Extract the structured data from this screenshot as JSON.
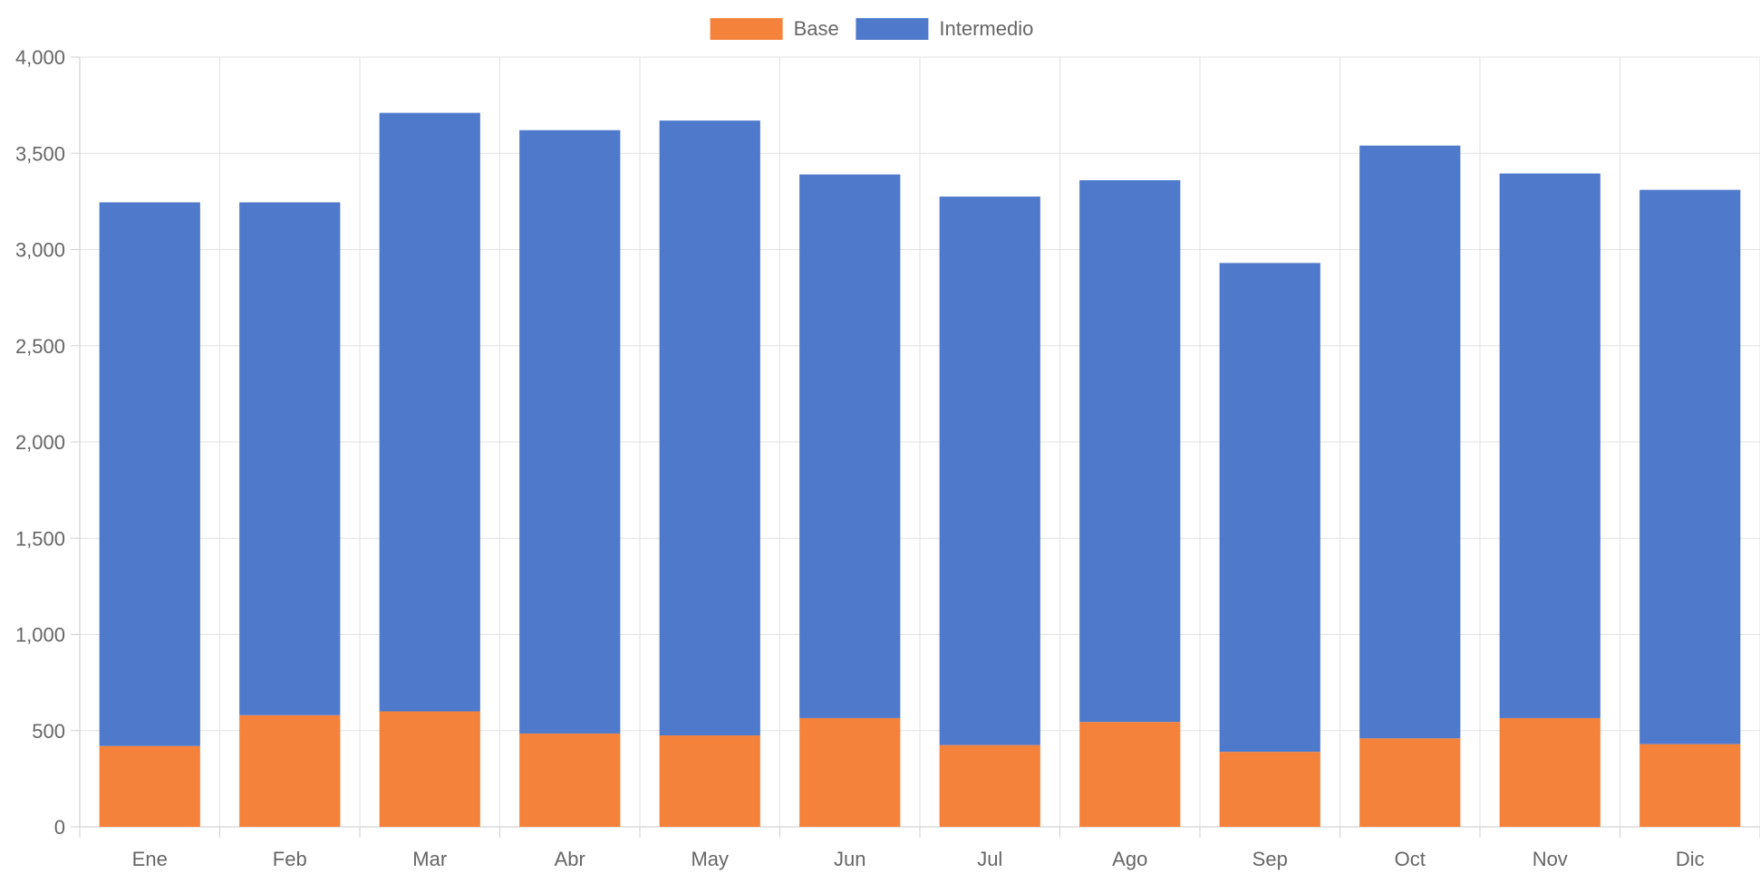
{
  "chart_data": {
    "type": "bar",
    "stacked": true,
    "categories": [
      "Ene",
      "Feb",
      "Mar",
      "Abr",
      "May",
      "Jun",
      "Jul",
      "Ago",
      "Sep",
      "Oct",
      "Nov",
      "Dic"
    ],
    "series": [
      {
        "name": "Base",
        "color": "#F5823A",
        "values": [
          420,
          580,
          600,
          485,
          475,
          565,
          425,
          545,
          390,
          460,
          565,
          430
        ]
      },
      {
        "name": "Intermedio",
        "color": "#4F7ACC",
        "values": [
          2825,
          2665,
          3110,
          3135,
          3195,
          2825,
          2850,
          2815,
          2540,
          3080,
          2830,
          2880
        ]
      }
    ],
    "ylim": [
      0,
      4000
    ],
    "yticks": [
      "0",
      "500",
      "1,000",
      "1,500",
      "2,000",
      "2,500",
      "3,000",
      "3,500",
      "4,000"
    ],
    "grid": true,
    "legend_position": "top-center",
    "xlabel": "",
    "ylabel": "",
    "title": ""
  }
}
